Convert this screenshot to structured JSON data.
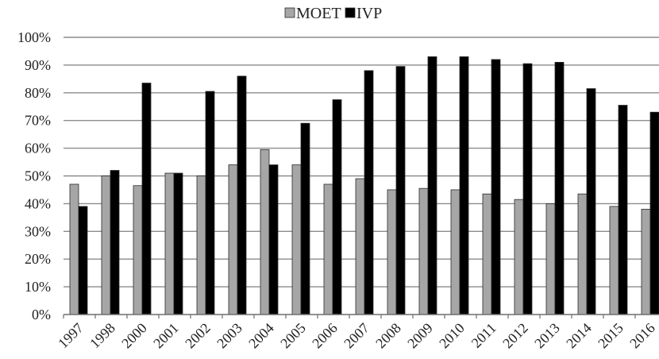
{
  "chart_data": {
    "type": "bar",
    "title": "",
    "xlabel": "",
    "ylabel": "",
    "ylim": [
      0,
      100
    ],
    "ytick_step": 10,
    "yticks_format": "percent",
    "grid": true,
    "legend_position": "top-center",
    "categories": [
      "1997",
      "1998",
      "2000",
      "2001",
      "2002",
      "2003",
      "2004",
      "2005",
      "2006",
      "2007",
      "2008",
      "2009",
      "2010",
      "2011",
      "2012",
      "2013",
      "2014",
      "2015",
      "2016"
    ],
    "series": [
      {
        "name": "MOET",
        "color": "#a6a6a6",
        "values": [
          47,
          50,
          46.5,
          51,
          50,
          54,
          59.5,
          54,
          47,
          49,
          45,
          45.5,
          45,
          43.5,
          41.5,
          40,
          43.5,
          39,
          38
        ]
      },
      {
        "name": "IVP",
        "color": "#000000",
        "values": [
          39,
          52,
          83.5,
          51,
          80.5,
          86,
          54,
          69,
          77.5,
          88,
          89.5,
          93,
          93,
          92,
          90.5,
          91,
          81.5,
          75.5,
          73
        ]
      }
    ]
  }
}
